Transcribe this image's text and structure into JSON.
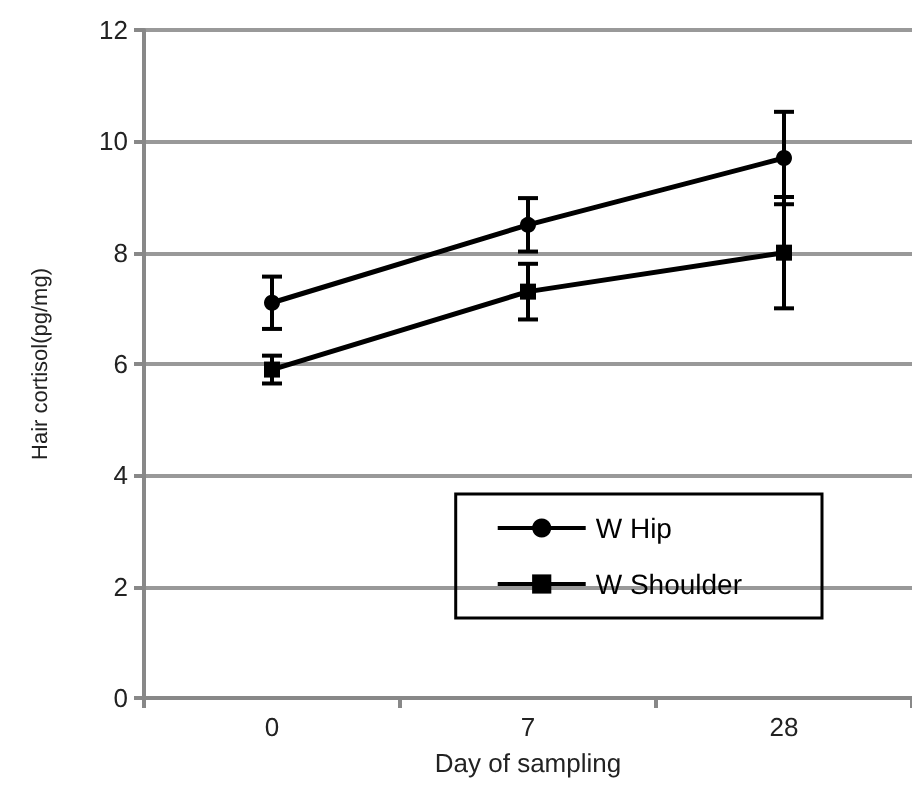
{
  "chart_data": {
    "type": "line",
    "xlabel": "Day of sampling",
    "ylabel": "Hair cortisol(pg/mg)",
    "categories": [
      "0",
      "7",
      "28"
    ],
    "series": [
      {
        "name": "W Hip",
        "color": "#000000",
        "marker": "circle",
        "values": [
          7.1,
          8.5,
          9.7
        ],
        "errors": [
          0.47,
          0.48,
          0.83
        ]
      },
      {
        "name": "W Shoulder",
        "color": "#000000",
        "marker": "square",
        "values": [
          5.9,
          7.3,
          8.0
        ],
        "errors": [
          0.25,
          0.5,
          1.0
        ]
      }
    ],
    "ylim": [
      0,
      12
    ],
    "yticks": [
      0,
      2,
      4,
      6,
      8,
      10,
      12
    ],
    "grid": "y",
    "legend": "bottom right",
    "line_style": "solid"
  }
}
